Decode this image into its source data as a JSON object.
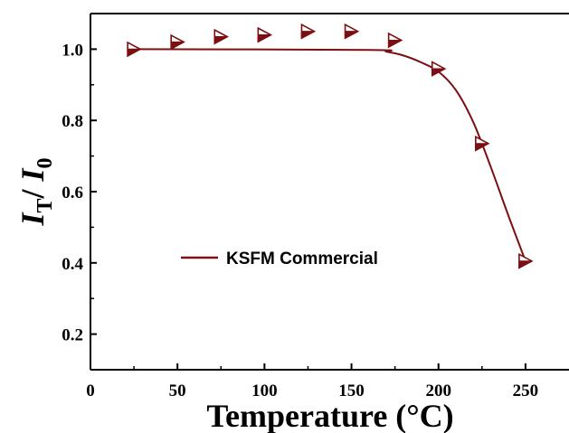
{
  "chart_data": {
    "type": "scatter",
    "xlabel": "Temperature (°C)",
    "ylabel": {
      "main": "I",
      "sub_num": "T",
      "slash": "/ ",
      "main2": "I",
      "sub_den": "0"
    },
    "xlim": [
      0,
      275
    ],
    "ylim": [
      0.1,
      1.1
    ],
    "x_ticks": [
      0,
      50,
      100,
      150,
      200,
      250
    ],
    "x_tick_labels": [
      "0",
      "50",
      "100",
      "150",
      "200",
      "250"
    ],
    "y_ticks": [
      0.2,
      0.4,
      0.6,
      0.8,
      1.0
    ],
    "y_tick_labels": [
      "0.2",
      "0.4",
      "0.6",
      "0.8",
      "1.0"
    ],
    "grid": false,
    "legend_position": "center-left",
    "series": [
      {
        "name": "KSFM Commercial",
        "color": "#7b0f12",
        "marker": "triangle-right-half-filled",
        "x": [
          25,
          50,
          75,
          100,
          125,
          150,
          175,
          200,
          225,
          250
        ],
        "y": [
          1.0,
          1.02,
          1.035,
          1.04,
          1.05,
          1.05,
          1.025,
          0.945,
          0.735,
          0.405
        ]
      }
    ],
    "fit_curve": {
      "color": "#7b0f12",
      "x": [
        25,
        160,
        170,
        180,
        190,
        200,
        210,
        220,
        230,
        240,
        250
      ],
      "y": [
        1.0,
        0.998,
        0.993,
        0.982,
        0.963,
        0.937,
        0.885,
        0.795,
        0.67,
        0.535,
        0.405
      ]
    }
  }
}
